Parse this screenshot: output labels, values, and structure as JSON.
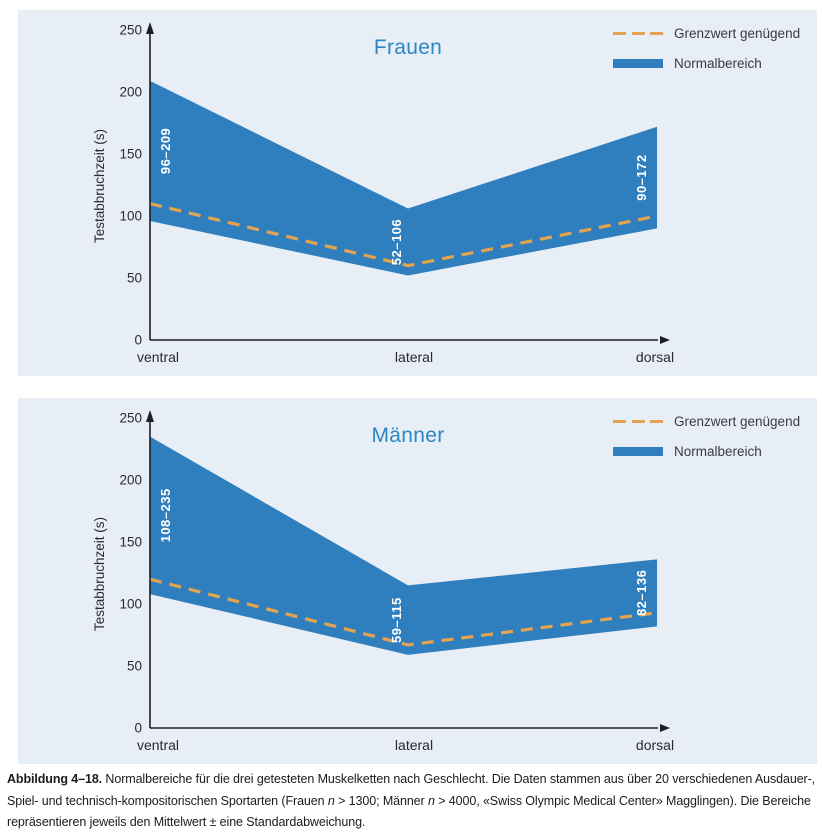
{
  "colors": {
    "band": "#2f7fbe",
    "grenzwert": "#e3a34f",
    "panel-bg": "#e8eef6",
    "title": "#2e86c4",
    "axis": "#1e1e26",
    "text": "#2a2a31"
  },
  "chart_data": [
    {
      "type": "area",
      "title": "Frauen",
      "ylabel": "Testabbruchzeit (s)",
      "categories": [
        "ventral",
        "lateral",
        "dorsal"
      ],
      "ylim": [
        0,
        250
      ],
      "yticks": [
        0,
        50,
        100,
        150,
        200,
        250
      ],
      "band": {
        "name": "Normalbereich",
        "lower": [
          96,
          52,
          90
        ],
        "upper": [
          209,
          106,
          172
        ],
        "range_labels": [
          "96–209",
          "52–106",
          "90–172"
        ]
      },
      "grenzwert": {
        "name": "Grenzwert genügend",
        "values": [
          110,
          60,
          100
        ]
      },
      "legend": [
        {
          "label": "Grenzwert genügend",
          "swatch": "dashed"
        },
        {
          "label": "Normalbereich",
          "swatch": "band"
        }
      ]
    },
    {
      "type": "area",
      "title": "Männer",
      "ylabel": "Testabbruchzeit (s)",
      "categories": [
        "ventral",
        "lateral",
        "dorsal"
      ],
      "ylim": [
        0,
        250
      ],
      "yticks": [
        0,
        50,
        100,
        150,
        200,
        250
      ],
      "band": {
        "name": "Normalbereich",
        "lower": [
          108,
          59,
          82
        ],
        "upper": [
          235,
          115,
          136
        ],
        "range_labels": [
          "108–235",
          "59–115",
          "82–136"
        ]
      },
      "grenzwert": {
        "name": "Grenzwert genügend",
        "values": [
          120,
          67,
          93
        ]
      },
      "legend": [
        {
          "label": "Grenzwert genügend",
          "swatch": "dashed"
        },
        {
          "label": "Normalbereich",
          "swatch": "band"
        }
      ]
    }
  ],
  "figure": {
    "caption": {
      "segments": [
        {
          "text": "Abbildung 4–18.",
          "bold": true
        },
        {
          "text": " Normalbereiche für die drei getesteten Muskelketten nach Geschlecht. Die Daten stammen aus über 20 verschiedenen Ausdauer-, Spiel- und technisch-kompositorischen Sportarten (Frauen "
        },
        {
          "text": "n",
          "italic": true
        },
        {
          "text": " > 1300; Männer "
        },
        {
          "text": "n",
          "italic": true
        },
        {
          "text": " > 4000, «Swiss Olympic Medical Center» Magglingen). Die Bereiche repräsentieren jeweils den Mittelwert ± eine Standardabweichung."
        }
      ]
    }
  }
}
